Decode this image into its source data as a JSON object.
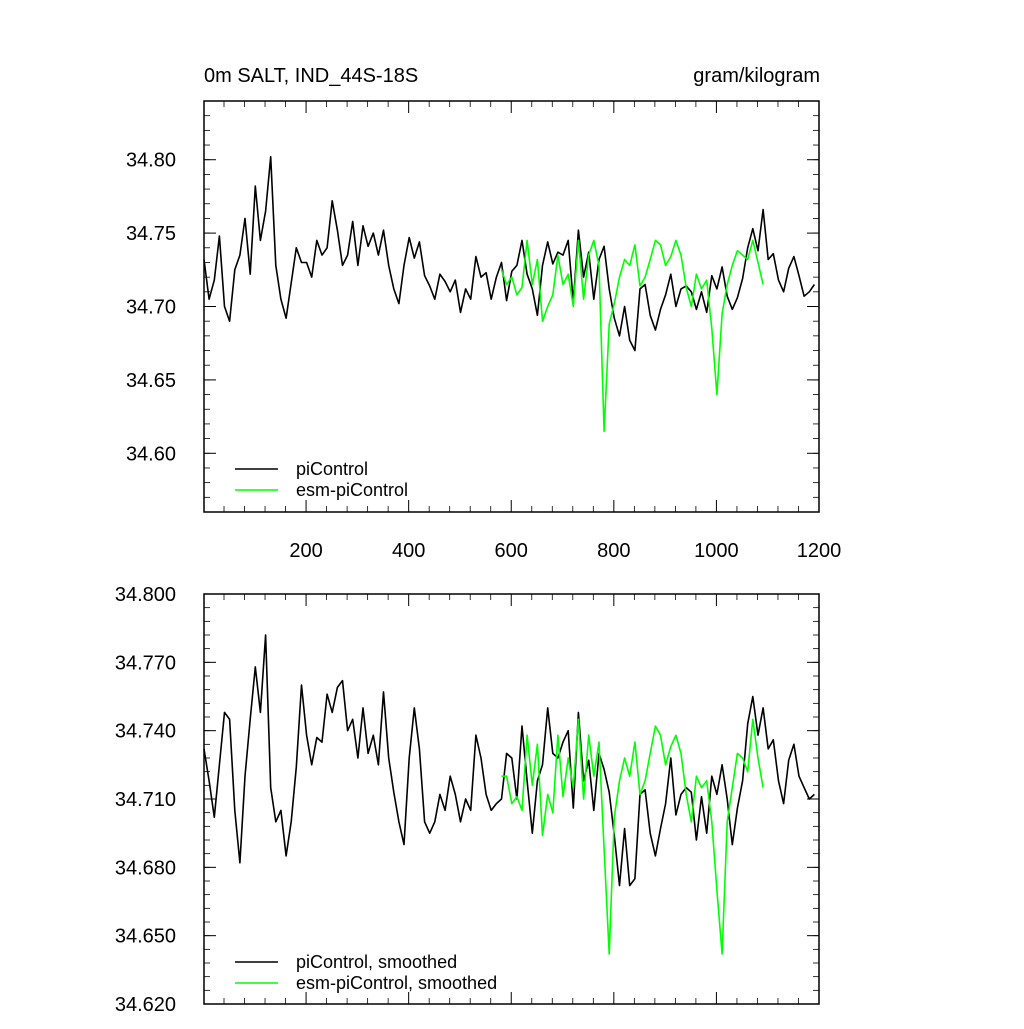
{
  "chart_data": [
    {
      "type": "line",
      "title": "0m SALT, IND_44S-18S",
      "title_right": "gram/kilogram",
      "xlim": [
        1,
        1200
      ],
      "ylim": [
        34.56,
        34.84
      ],
      "xticks": [
        200,
        400,
        600,
        800,
        1000,
        1200
      ],
      "xtick_labels": [
        "200",
        "400",
        "600",
        "800",
        "1000",
        "1200"
      ],
      "yticks": [
        34.6,
        34.65,
        34.7,
        34.75,
        34.8
      ],
      "ytick_labels": [
        "34.60",
        "34.65",
        "34.70",
        "34.75",
        "34.80"
      ],
      "legend_position": "bottom-left",
      "grid": false,
      "series": [
        {
          "name": "piControl",
          "color": "#000000",
          "start": 1,
          "step": 10,
          "values": [
            34.732,
            34.705,
            34.718,
            34.748,
            34.7,
            34.69,
            34.725,
            34.735,
            34.76,
            34.722,
            34.782,
            34.745,
            34.765,
            34.802,
            34.728,
            34.705,
            34.692,
            34.716,
            34.74,
            34.73,
            34.73,
            34.72,
            34.745,
            34.735,
            34.74,
            34.772,
            34.752,
            34.728,
            34.735,
            34.758,
            34.728,
            34.755,
            34.741,
            34.75,
            34.735,
            34.752,
            34.728,
            34.712,
            34.702,
            34.728,
            34.747,
            34.733,
            34.744,
            34.721,
            34.714,
            34.705,
            34.722,
            34.717,
            34.71,
            34.718,
            34.696,
            34.712,
            34.705,
            34.734,
            34.72,
            34.723,
            34.705,
            34.72,
            34.73,
            34.704,
            34.724,
            34.728,
            34.745,
            34.722,
            34.712,
            34.694,
            34.728,
            34.744,
            34.729,
            34.737,
            34.735,
            34.745,
            34.703,
            34.752,
            34.72,
            34.737,
            34.705,
            34.732,
            34.741,
            34.712,
            34.692,
            34.68,
            34.7,
            34.677,
            34.67,
            34.712,
            34.715,
            34.694,
            34.684,
            34.698,
            34.708,
            34.722,
            34.7,
            34.712,
            34.714,
            34.71,
            34.698,
            34.71,
            34.696,
            34.721,
            34.712,
            34.727,
            34.707,
            34.698,
            34.706,
            34.719,
            34.74,
            34.753,
            34.738,
            34.766,
            34.732,
            34.736,
            34.718,
            34.71,
            34.726,
            34.734,
            34.721,
            34.707,
            34.71,
            34.715
          ]
        },
        {
          "name": "esm-piControl",
          "color": "#00ff00",
          "start": 581,
          "step": 10,
          "values": [
            34.725,
            34.715,
            34.72,
            34.708,
            34.713,
            34.745,
            34.715,
            34.732,
            34.69,
            34.7,
            34.708,
            34.735,
            34.715,
            34.722,
            34.7,
            34.745,
            34.705,
            34.735,
            34.745,
            34.728,
            34.615,
            34.688,
            34.702,
            34.72,
            34.732,
            34.728,
            34.742,
            34.714,
            34.72,
            34.732,
            34.745,
            34.742,
            34.728,
            34.734,
            34.745,
            34.735,
            34.713,
            34.7,
            34.722,
            34.712,
            34.718,
            34.685,
            34.64,
            34.695,
            34.715,
            34.728,
            34.738,
            34.735,
            34.732,
            34.745,
            34.73,
            34.715
          ]
        }
      ]
    },
    {
      "type": "line",
      "xlim": [
        1,
        1200
      ],
      "ylim": [
        34.62,
        34.8
      ],
      "xticks": [
        200,
        400,
        600,
        800,
        1000,
        1200
      ],
      "yticks": [
        34.62,
        34.65,
        34.68,
        34.71,
        34.74,
        34.77,
        34.8
      ],
      "ytick_labels": [
        "34.620",
        "34.650",
        "34.680",
        "34.710",
        "34.740",
        "34.770",
        "34.800"
      ],
      "legend_position": "bottom-left",
      "grid": false,
      "series": [
        {
          "name": "piControl, smoothed",
          "color": "#000000",
          "start": 1,
          "step": 10,
          "values": [
            34.732,
            34.718,
            34.702,
            34.725,
            34.748,
            34.745,
            34.705,
            34.682,
            34.72,
            34.745,
            34.768,
            34.748,
            34.782,
            34.715,
            34.7,
            34.705,
            34.685,
            34.7,
            34.724,
            34.76,
            34.738,
            34.725,
            34.737,
            34.735,
            34.756,
            34.748,
            34.759,
            34.762,
            34.74,
            34.745,
            34.728,
            34.75,
            34.73,
            34.738,
            34.725,
            34.757,
            34.728,
            34.713,
            34.7,
            34.69,
            34.728,
            34.75,
            34.732,
            34.7,
            34.695,
            34.7,
            34.712,
            34.705,
            34.72,
            34.712,
            34.7,
            34.71,
            34.705,
            34.738,
            34.728,
            34.712,
            34.705,
            34.708,
            34.71,
            34.73,
            34.728,
            34.71,
            34.742,
            34.718,
            34.695,
            34.718,
            34.725,
            34.75,
            34.73,
            34.728,
            34.735,
            34.74,
            34.706,
            34.748,
            34.718,
            34.727,
            34.705,
            34.73,
            34.723,
            34.713,
            34.694,
            34.672,
            34.697,
            34.672,
            34.675,
            34.712,
            34.714,
            34.695,
            34.685,
            34.697,
            34.708,
            34.728,
            34.703,
            34.712,
            34.715,
            34.713,
            34.692,
            34.711,
            34.695,
            34.72,
            34.712,
            34.725,
            34.71,
            34.69,
            34.706,
            34.718,
            34.743,
            34.755,
            34.738,
            34.75,
            34.732,
            34.736,
            34.718,
            34.708,
            34.727,
            34.734,
            34.72,
            34.715,
            34.71,
            34.712
          ]
        },
        {
          "name": "esm-piControl, smoothed",
          "color": "#00ff00",
          "start": 581,
          "step": 10,
          "values": [
            34.72,
            34.72,
            34.708,
            34.711,
            34.705,
            34.738,
            34.716,
            34.734,
            34.694,
            34.712,
            34.704,
            34.738,
            34.711,
            34.728,
            34.715,
            34.745,
            34.71,
            34.738,
            34.72,
            34.735,
            34.688,
            34.642,
            34.702,
            34.718,
            34.728,
            34.72,
            34.735,
            34.712,
            34.718,
            34.73,
            34.742,
            34.738,
            34.725,
            34.733,
            34.738,
            34.73,
            34.712,
            34.7,
            34.72,
            34.715,
            34.718,
            34.7,
            34.67,
            34.642,
            34.7,
            34.715,
            34.73,
            34.728,
            34.722,
            34.745,
            34.728,
            34.715
          ]
        }
      ]
    }
  ]
}
